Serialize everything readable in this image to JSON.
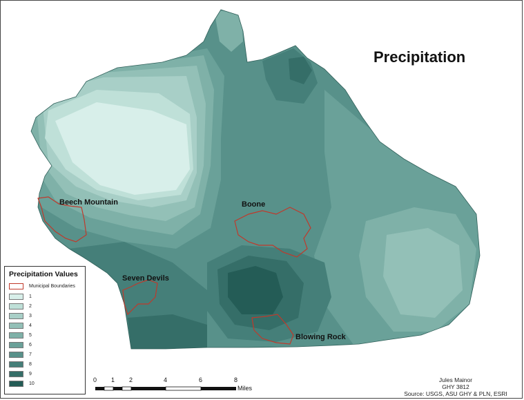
{
  "title": "Precipitation",
  "towns": {
    "beech_mountain": "Beech Mountain",
    "boone": "Boone",
    "seven_devils": "Seven Devils",
    "blowing_rock": "Blowing Rock"
  },
  "legend": {
    "title": "Precipitation Values",
    "boundary_label": "Municipal Boundaries",
    "boundary_color": "#c0392b",
    "classes": [
      {
        "label": "1",
        "color": "#d8efea"
      },
      {
        "label": "2",
        "color": "#bfe0d8"
      },
      {
        "label": "3",
        "color": "#a8cfc7"
      },
      {
        "label": "4",
        "color": "#93c0b7"
      },
      {
        "label": "5",
        "color": "#7fb1a8"
      },
      {
        "label": "6",
        "color": "#6aa199"
      },
      {
        "label": "7",
        "color": "#58918a"
      },
      {
        "label": "8",
        "color": "#457f79"
      },
      {
        "label": "9",
        "color": "#356e68"
      },
      {
        "label": "10",
        "color": "#245c56"
      }
    ]
  },
  "scale_bar": {
    "ticks": [
      "0",
      "1",
      "2",
      "4",
      "6",
      "8"
    ],
    "unit": "Miles"
  },
  "credits": {
    "author": "Jules Mainor",
    "course": "GHY 3812",
    "source": "Source: USGS, ASU GHY & PLN, ESRI"
  }
}
